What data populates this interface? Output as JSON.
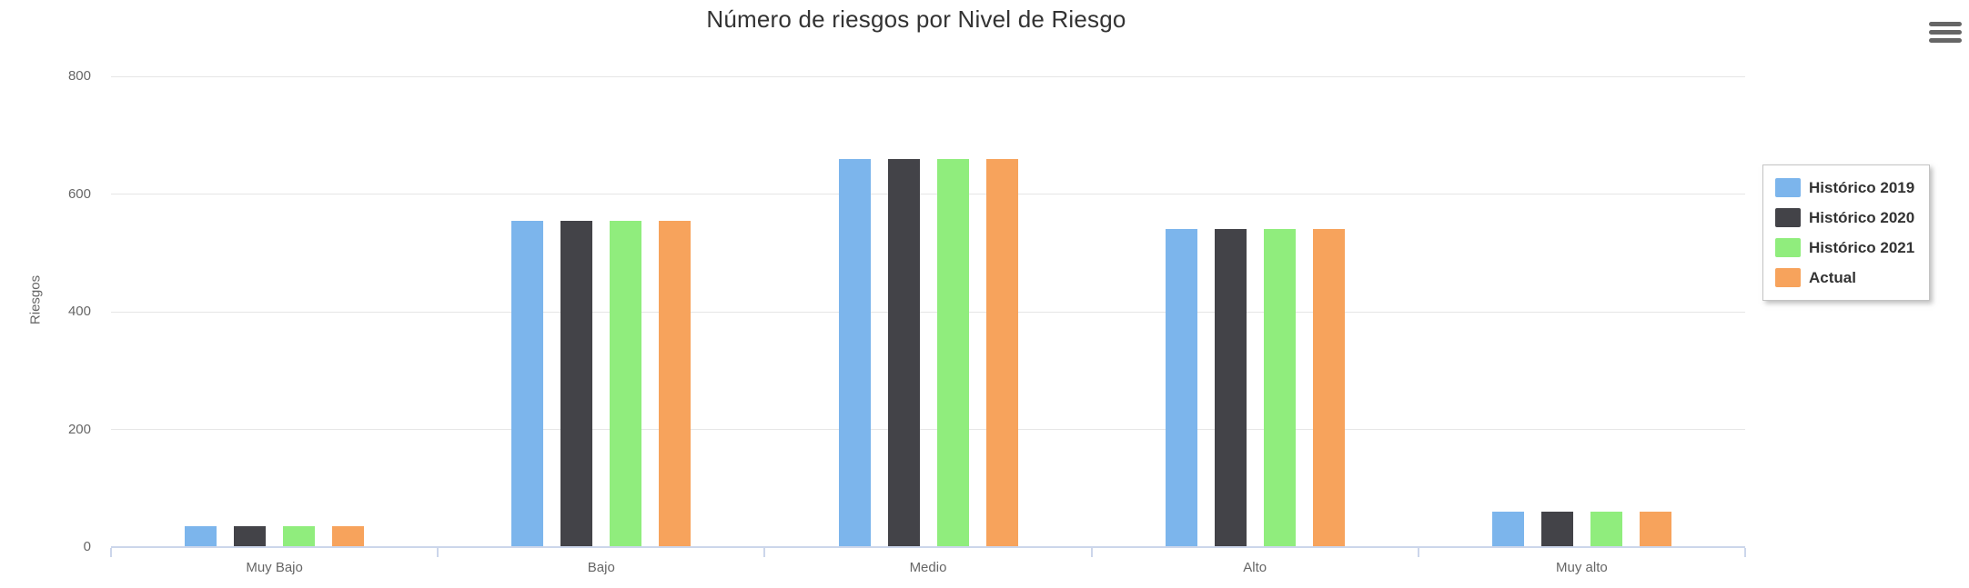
{
  "chart_data": {
    "type": "bar",
    "title": "Número de riesgos por Nivel de Riesgo",
    "categories": [
      "Muy Bajo",
      "Bajo",
      "Medio",
      "Alto",
      "Muy alto"
    ],
    "series": [
      {
        "name": "Histórico 2019",
        "color": "#7cb5ec",
        "values": [
          35,
          555,
          660,
          540,
          60
        ]
      },
      {
        "name": "Histórico 2020",
        "color": "#434348",
        "values": [
          35,
          555,
          660,
          540,
          60
        ]
      },
      {
        "name": "Histórico 2021",
        "color": "#90ed7d",
        "values": [
          35,
          555,
          660,
          540,
          60
        ]
      },
      {
        "name": "Actual",
        "color": "#f7a35c",
        "values": [
          35,
          555,
          660,
          540,
          60
        ]
      }
    ],
    "xlabel": "",
    "ylabel": "Riesgos",
    "ylim": [
      0,
      800
    ],
    "yticks": [
      0,
      200,
      400,
      600,
      800
    ],
    "grid": true,
    "legend_position": "right",
    "background": "#ffffff"
  },
  "icons": {
    "export_menu": "hamburger-menu"
  },
  "colors": {
    "axis_line": "#ccd6eb",
    "gridline": "#e6e6e6",
    "title_text": "#333333",
    "axis_text": "#666666",
    "legend_text": "#333333"
  }
}
